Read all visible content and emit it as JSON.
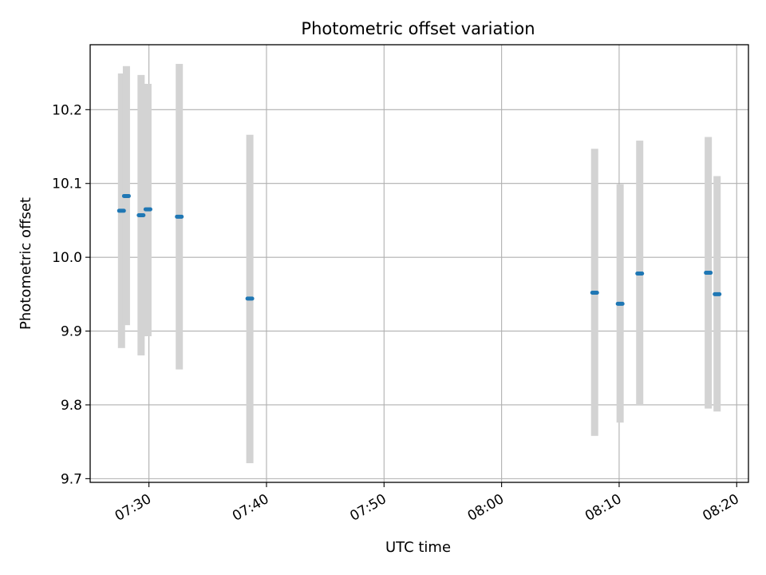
{
  "chart_data": {
    "type": "scatter",
    "title": "Photometric offset variation",
    "xlabel": "UTC time",
    "ylabel": "Photometric offset",
    "xlim": [
      "07:25:00",
      "08:21:00"
    ],
    "ylim": [
      9.695,
      10.288
    ],
    "x_ticks": [
      "07:30",
      "07:40",
      "07:50",
      "08:00",
      "08:10",
      "08:20"
    ],
    "y_ticks": [
      "9.7",
      "9.8",
      "9.9",
      "10.0",
      "10.1",
      "10.2"
    ],
    "grid": true,
    "colors": {
      "marker": "#1f77b4",
      "errorbar": "#d3d3d3",
      "grid": "#b0b0b0"
    },
    "points": [
      {
        "x": "07:27:40",
        "y": 10.063,
        "ylow": 9.877,
        "yhigh": 10.249
      },
      {
        "x": "07:28:05",
        "y": 10.083,
        "ylow": 9.908,
        "yhigh": 10.259
      },
      {
        "x": "07:29:20",
        "y": 10.057,
        "ylow": 9.867,
        "yhigh": 10.247
      },
      {
        "x": "07:29:55",
        "y": 10.065,
        "ylow": 9.893,
        "yhigh": 10.235
      },
      {
        "x": "07:32:35",
        "y": 10.055,
        "ylow": 9.848,
        "yhigh": 10.262
      },
      {
        "x": "07:38:35",
        "y": 9.944,
        "ylow": 9.721,
        "yhigh": 10.166
      },
      {
        "x": "08:07:55",
        "y": 9.952,
        "ylow": 9.758,
        "yhigh": 10.147
      },
      {
        "x": "08:10:05",
        "y": 9.937,
        "ylow": 9.776,
        "yhigh": 10.099
      },
      {
        "x": "08:11:45",
        "y": 9.978,
        "ylow": 9.8,
        "yhigh": 10.158
      },
      {
        "x": "08:17:35",
        "y": 9.979,
        "ylow": 9.795,
        "yhigh": 10.163
      },
      {
        "x": "08:18:20",
        "y": 9.95,
        "ylow": 9.791,
        "yhigh": 10.11
      }
    ]
  }
}
